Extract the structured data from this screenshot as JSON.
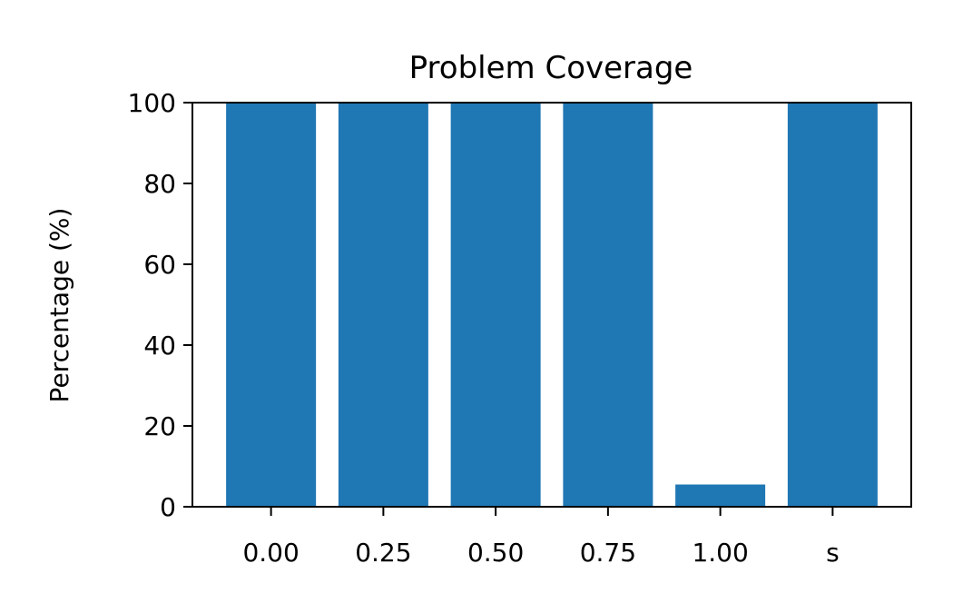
{
  "chart_data": {
    "type": "bar",
    "title": "Problem Coverage",
    "xlabel": "",
    "ylabel": "Percentage (%)",
    "categories": [
      "0.00",
      "0.25",
      "0.50",
      "0.75",
      "1.00",
      "s"
    ],
    "values": [
      100,
      100,
      100,
      100,
      5.5,
      100
    ],
    "ylim": [
      0,
      100
    ],
    "yticks": [
      0,
      20,
      40,
      60,
      80,
      100
    ],
    "grid": false,
    "bar_color": "#1f77b4"
  }
}
